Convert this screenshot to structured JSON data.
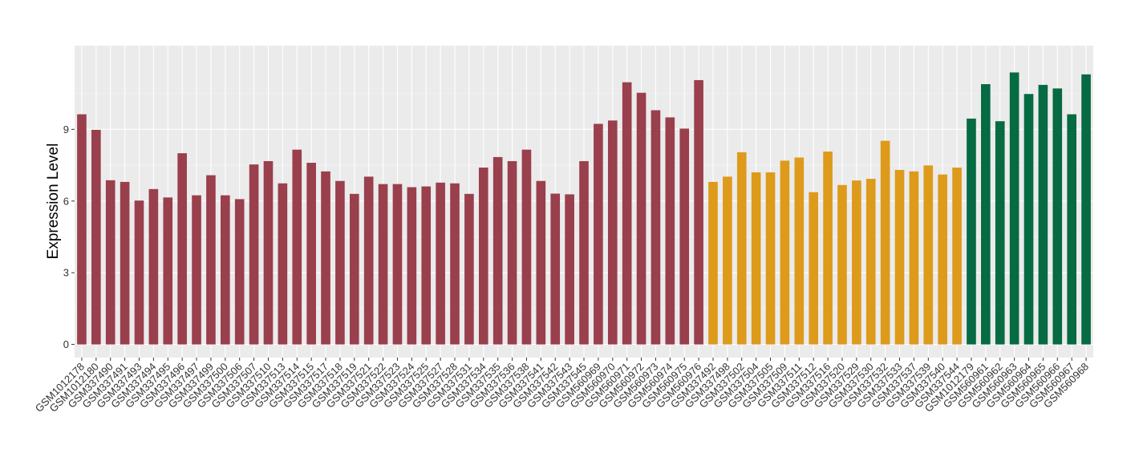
{
  "chart_data": {
    "type": "bar",
    "title": "",
    "xlabel": "",
    "ylabel": "Expression Level",
    "ylim": [
      -0.55,
      12.5
    ],
    "yticks": [
      0,
      3,
      6,
      9
    ],
    "grid": true,
    "legend": "none",
    "categories": [
      "GSM1012178",
      "GSM1012180",
      "GSM337490",
      "GSM337491",
      "GSM337493",
      "GSM337494",
      "GSM337495",
      "GSM337496",
      "GSM337497",
      "GSM337499",
      "GSM337500",
      "GSM337506",
      "GSM337507",
      "GSM337510",
      "GSM337513",
      "GSM337514",
      "GSM337515",
      "GSM337517",
      "GSM337518",
      "GSM337519",
      "GSM337521",
      "GSM337522",
      "GSM337523",
      "GSM337524",
      "GSM337525",
      "GSM337527",
      "GSM337528",
      "GSM337531",
      "GSM337534",
      "GSM337535",
      "GSM337536",
      "GSM337538",
      "GSM337541",
      "GSM337542",
      "GSM337543",
      "GSM337545",
      "GSM560969",
      "GSM560970",
      "GSM560971",
      "GSM560972",
      "GSM560973",
      "GSM560974",
      "GSM560975",
      "GSM560976",
      "GSM337492",
      "GSM337498",
      "GSM337502",
      "GSM337504",
      "GSM337505",
      "GSM337509",
      "GSM337511",
      "GSM337512",
      "GSM337516",
      "GSM337520",
      "GSM337529",
      "GSM337530",
      "GSM337532",
      "GSM337533",
      "GSM337537",
      "GSM337539",
      "GSM337540",
      "GSM337544",
      "GSM1012179",
      "GSM560961",
      "GSM560962",
      "GSM560963",
      "GSM560964",
      "GSM560965",
      "GSM560966",
      "GSM560967",
      "GSM560968"
    ],
    "values": [
      9.63,
      8.98,
      6.87,
      6.8,
      6.02,
      6.5,
      6.15,
      8.0,
      6.24,
      7.08,
      6.24,
      6.08,
      7.53,
      7.67,
      6.74,
      8.15,
      7.6,
      7.24,
      6.84,
      6.3,
      7.02,
      6.71,
      6.71,
      6.58,
      6.61,
      6.77,
      6.74,
      6.3,
      7.4,
      7.84,
      7.67,
      8.15,
      6.84,
      6.31,
      6.28,
      7.67,
      9.23,
      9.37,
      10.97,
      10.53,
      9.8,
      9.5,
      9.03,
      11.06,
      6.8,
      7.02,
      8.04,
      7.2,
      7.2,
      7.69,
      7.82,
      6.37,
      8.07,
      6.67,
      6.86,
      6.93,
      8.52,
      7.3,
      7.24,
      7.49,
      7.11,
      7.4,
      9.45,
      10.89,
      9.34,
      11.38,
      10.48,
      10.86,
      10.71,
      9.63,
      11.3
    ],
    "groups": [
      0,
      0,
      0,
      0,
      0,
      0,
      0,
      0,
      0,
      0,
      0,
      0,
      0,
      0,
      0,
      0,
      0,
      0,
      0,
      0,
      0,
      0,
      0,
      0,
      0,
      0,
      0,
      0,
      0,
      0,
      0,
      0,
      0,
      0,
      0,
      0,
      0,
      0,
      0,
      0,
      0,
      0,
      0,
      0,
      1,
      1,
      1,
      1,
      1,
      1,
      1,
      1,
      1,
      1,
      1,
      1,
      1,
      1,
      1,
      1,
      1,
      1,
      2,
      2,
      2,
      2,
      2,
      2,
      2,
      2,
      2
    ],
    "colors": [
      "#9a3f4c",
      "#dd9a1b",
      "#066a43"
    ]
  }
}
